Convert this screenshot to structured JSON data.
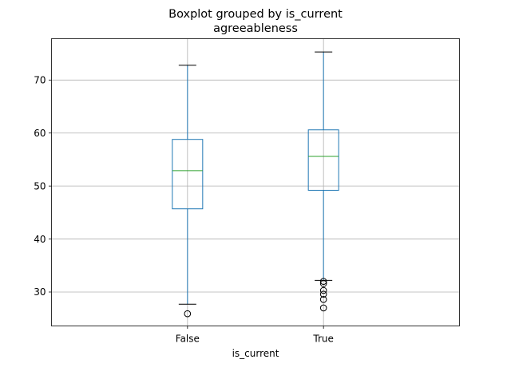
{
  "chart_data": {
    "type": "boxplot",
    "title": "Boxplot grouped by is_current",
    "subtitle": "agreeableness",
    "xlabel": "is_current",
    "ylabel": "",
    "categories": [
      "False",
      "True"
    ],
    "boxes": [
      {
        "category": "False",
        "whisker_low": 27.7,
        "q1": 45.7,
        "median": 52.9,
        "q3": 58.8,
        "whisker_high": 72.8,
        "outliers": [
          25.9
        ]
      },
      {
        "category": "True",
        "whisker_low": 32.2,
        "q1": 49.2,
        "median": 55.6,
        "q3": 60.6,
        "whisker_high": 75.3,
        "outliers": [
          32.0,
          31.6,
          30.3,
          29.6,
          28.6,
          27.0
        ]
      }
    ],
    "ylim": [
      23.6,
      77.8
    ],
    "yticks": [
      30,
      40,
      50,
      60,
      70
    ],
    "grid": true,
    "colors": {
      "box": "#1f77b4",
      "median": "#2ca02c",
      "whisker_cap": "#000000",
      "grid": "#b0b0b0",
      "outlier": "#000000"
    }
  }
}
